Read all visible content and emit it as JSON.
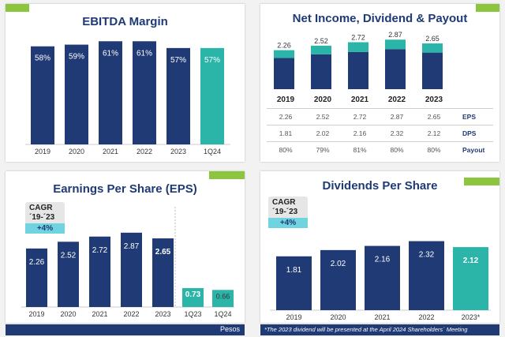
{
  "colors": {
    "navy": "#1f3a74",
    "teal": "#2bb5a9",
    "green": "#8cc63f",
    "cyan": "#6fd3e0"
  },
  "panels": {
    "ebitda": {
      "title": "EBITDA Margin"
    },
    "net_income": {
      "title": "Net Income, Dividend & Payout"
    },
    "eps": {
      "title": "Earnings Per Share (EPS)",
      "cagr_label": "CAGR",
      "cagr_period": "´19-´23",
      "cagr_value": "+4%",
      "unit_note": "Pesos"
    },
    "dps": {
      "title": "Dividends Per Share",
      "cagr_label": "CAGR",
      "cagr_period": "´19-´23",
      "cagr_value": "+4%",
      "footnote": "*The 2023 dividend will be presented at the April 2024 Shareholders´ Meeting"
    }
  },
  "table": {
    "years": [
      "2019",
      "2020",
      "2021",
      "2022",
      "2023"
    ],
    "rows": [
      {
        "name": "EPS",
        "values": [
          "2.26",
          "2.52",
          "2.72",
          "2.87",
          "2.65"
        ]
      },
      {
        "name": "DPS",
        "values": [
          "1.81",
          "2.02",
          "2.16",
          "2.32",
          "2.12"
        ]
      },
      {
        "name": "Payout",
        "values": [
          "80%",
          "79%",
          "81%",
          "80%",
          "80%"
        ]
      }
    ]
  },
  "chart_data": [
    {
      "type": "bar",
      "title": "EBITDA Margin",
      "categories": [
        "2019",
        "2020",
        "2021",
        "2022",
        "2023",
        "1Q24"
      ],
      "values": [
        58,
        59,
        61,
        61,
        57,
        57
      ],
      "labels": [
        "58%",
        "59%",
        "61%",
        "61%",
        "57%",
        "57%"
      ],
      "ylim": [
        0,
        70
      ]
    },
    {
      "type": "bar",
      "title": "Net Income, Dividend & Payout",
      "categories": [
        "2019",
        "2020",
        "2021",
        "2022",
        "2023"
      ],
      "series": [
        {
          "values": [
            1.81,
            2.02,
            2.16,
            2.32,
            2.12
          ]
        },
        {
          "values": [
            0.45,
            0.5,
            0.56,
            0.55,
            0.53
          ]
        }
      ],
      "totals": [
        "2.26",
        "2.52",
        "2.72",
        "2.87",
        "2.65"
      ],
      "ylim": [
        0,
        3.2
      ]
    },
    {
      "type": "bar",
      "title": "Earnings Per Share (EPS)",
      "categories": [
        "2019",
        "2020",
        "2021",
        "2022",
        "2023",
        "1Q23",
        "1Q24"
      ],
      "values": [
        2.26,
        2.52,
        2.72,
        2.87,
        2.65,
        0.73,
        0.66
      ],
      "labels": [
        "2.26",
        "2.52",
        "2.72",
        "2.87",
        "2.65",
        "0.73",
        "0.66"
      ],
      "ylim": [
        0,
        3.2
      ]
    },
    {
      "type": "bar",
      "title": "Dividends Per Share",
      "categories": [
        "2019",
        "2020",
        "2021",
        "2022",
        "2023*"
      ],
      "values": [
        1.81,
        2.02,
        2.16,
        2.32,
        2.12
      ],
      "labels": [
        "1.81",
        "2.02",
        "2.16",
        "2.32",
        "2.12"
      ],
      "ylim": [
        0,
        2.6
      ]
    }
  ]
}
